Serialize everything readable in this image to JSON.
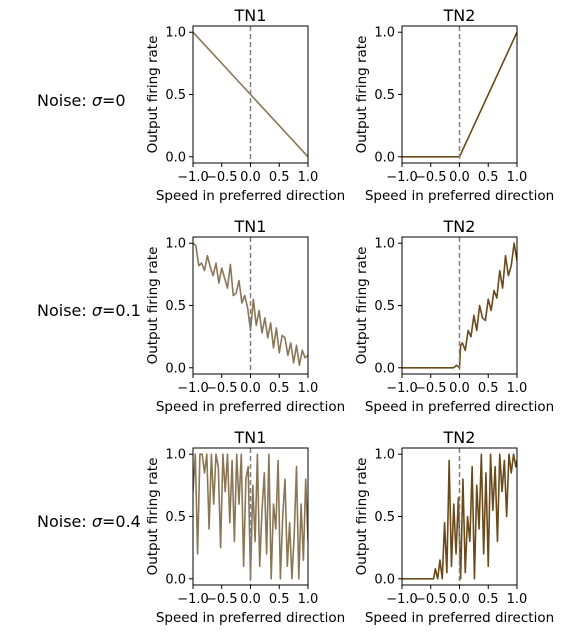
{
  "rows": [
    {
      "label_prefix": "Noise: ",
      "label_symbol": "σ",
      "label_suffix": "=0"
    },
    {
      "label_prefix": "Noise: ",
      "label_symbol": "σ",
      "label_suffix": "=0.1"
    },
    {
      "label_prefix": "Noise: ",
      "label_symbol": "σ",
      "label_suffix": "=0.4"
    }
  ],
  "colors": {
    "tn1": "#8a7655",
    "tn2": "#6b4a1a",
    "zero_line": "#808080",
    "axis": "#000000"
  },
  "chart_data": [
    {
      "type": "line",
      "title": "TN1",
      "row": "Noise: σ=0",
      "xlabel": "Speed in preferred direction",
      "ylabel": "Output firing rate",
      "xlim": [
        -1,
        1
      ],
      "ylim": [
        -0.05,
        1.05
      ],
      "xticks": [
        "−1.0",
        "−0.5",
        "0.0",
        "0.5",
        "1.0"
      ],
      "yticks": [
        "0.0",
        "0.5",
        "1.0"
      ],
      "grid": false,
      "zero_line": "dashed vertical at x=0",
      "series": [
        {
          "x": [
            -1,
            1
          ],
          "y": [
            1,
            0
          ]
        }
      ]
    },
    {
      "type": "line",
      "title": "TN2",
      "row": "Noise: σ=0",
      "xlabel": "Speed in preferred direction",
      "ylabel": "Output firing rate",
      "xlim": [
        -1,
        1
      ],
      "ylim": [
        -0.05,
        1.05
      ],
      "xticks": [
        "−1.0",
        "−0.5",
        "0.0",
        "0.5",
        "1.0"
      ],
      "yticks": [
        "0.0",
        "0.5",
        "1.0"
      ],
      "grid": false,
      "zero_line": "dashed vertical at x=0",
      "series": [
        {
          "x": [
            -1,
            0,
            1
          ],
          "y": [
            0,
            0,
            1
          ]
        }
      ]
    },
    {
      "type": "line",
      "title": "TN1",
      "row": "Noise: σ=0.1",
      "xlabel": "Speed in preferred direction",
      "ylabel": "Output firing rate",
      "xlim": [
        -1,
        1
      ],
      "ylim": [
        -0.05,
        1.05
      ],
      "xticks": [
        "−1.0",
        "−0.5",
        "0.0",
        "0.5",
        "1.0"
      ],
      "yticks": [
        "0.0",
        "0.5",
        "1.0"
      ],
      "grid": false,
      "zero_line": "dashed vertical at x=0",
      "series": [
        {
          "x": [
            -1.0,
            -0.95,
            -0.9,
            -0.85,
            -0.8,
            -0.75,
            -0.7,
            -0.65,
            -0.6,
            -0.55,
            -0.5,
            -0.45,
            -0.4,
            -0.35,
            -0.3,
            -0.25,
            -0.2,
            -0.15,
            -0.1,
            -0.05,
            0.0,
            0.05,
            0.1,
            0.15,
            0.2,
            0.25,
            0.3,
            0.35,
            0.4,
            0.45,
            0.5,
            0.55,
            0.6,
            0.65,
            0.7,
            0.75,
            0.8,
            0.85,
            0.9,
            0.95,
            1.0
          ],
          "y": [
            1.0,
            0.98,
            0.82,
            0.84,
            0.78,
            0.9,
            0.81,
            0.74,
            0.84,
            0.68,
            0.8,
            0.72,
            0.64,
            0.83,
            0.58,
            0.6,
            0.7,
            0.52,
            0.58,
            0.48,
            0.3,
            0.55,
            0.34,
            0.46,
            0.28,
            0.4,
            0.24,
            0.36,
            0.16,
            0.32,
            0.12,
            0.26,
            0.24,
            0.1,
            0.2,
            0.04,
            0.18,
            0.02,
            0.14,
            0.08,
            0.1
          ]
        }
      ]
    },
    {
      "type": "line",
      "title": "TN2",
      "row": "Noise: σ=0.1",
      "xlabel": "Speed in preferred direction",
      "ylabel": "Output firing rate",
      "xlim": [
        -1,
        1
      ],
      "ylim": [
        -0.05,
        1.05
      ],
      "xticks": [
        "−1.0",
        "−0.5",
        "0.0",
        "0.5",
        "1.0"
      ],
      "yticks": [
        "0.0",
        "0.5",
        "1.0"
      ],
      "grid": false,
      "zero_line": "dashed vertical at x=0",
      "series": [
        {
          "x": [
            -1.0,
            -0.9,
            -0.8,
            -0.7,
            -0.6,
            -0.5,
            -0.4,
            -0.3,
            -0.2,
            -0.1,
            -0.05,
            0.0,
            0.02,
            0.05,
            0.1,
            0.15,
            0.2,
            0.25,
            0.3,
            0.35,
            0.4,
            0.45,
            0.5,
            0.55,
            0.6,
            0.65,
            0.7,
            0.75,
            0.8,
            0.85,
            0.9,
            0.95,
            1.0
          ],
          "y": [
            0,
            0,
            0,
            0,
            0,
            0,
            0,
            0,
            0,
            0,
            0.02,
            0.0,
            0.18,
            0.2,
            0.14,
            0.3,
            0.25,
            0.42,
            0.3,
            0.5,
            0.4,
            0.38,
            0.55,
            0.46,
            0.62,
            0.56,
            0.78,
            0.64,
            0.9,
            0.74,
            0.82,
            1.0,
            0.86
          ]
        }
      ]
    },
    {
      "type": "line",
      "title": "TN1",
      "row": "Noise: σ=0.4",
      "xlabel": "Speed in preferred direction",
      "ylabel": "Output firing rate",
      "xlim": [
        -1,
        1
      ],
      "ylim": [
        -0.05,
        1.05
      ],
      "xticks": [
        "−1.0",
        "−0.5",
        "0.0",
        "0.5",
        "1.0"
      ],
      "yticks": [
        "0.0",
        "0.5",
        "1.0"
      ],
      "grid": false,
      "zero_line": "dashed vertical at x=0",
      "series": [
        {
          "x": [
            -1.0,
            -0.96,
            -0.92,
            -0.88,
            -0.84,
            -0.8,
            -0.76,
            -0.72,
            -0.68,
            -0.64,
            -0.6,
            -0.56,
            -0.52,
            -0.48,
            -0.44,
            -0.4,
            -0.36,
            -0.32,
            -0.28,
            -0.24,
            -0.2,
            -0.16,
            -0.12,
            -0.08,
            -0.04,
            0.0,
            0.04,
            0.08,
            0.12,
            0.16,
            0.2,
            0.24,
            0.28,
            0.32,
            0.36,
            0.4,
            0.44,
            0.48,
            0.52,
            0.56,
            0.6,
            0.64,
            0.68,
            0.72,
            0.76,
            0.8,
            0.84,
            0.88,
            0.92,
            0.96,
            1.0
          ],
          "y": [
            0.7,
            1.0,
            0.2,
            1.0,
            1.0,
            0.85,
            1.0,
            0.4,
            1.0,
            0.6,
            1.0,
            0.9,
            0.25,
            1.0,
            0.7,
            1.0,
            0.45,
            0.95,
            0.3,
            1.0,
            0.6,
            1.0,
            0.1,
            0.8,
            0.9,
            0.0,
            0.75,
            0.3,
            1.0,
            0.1,
            0.55,
            0.85,
            0.2,
            1.0,
            0.0,
            0.6,
            0.4,
            0.95,
            0.0,
            0.5,
            0.8,
            0.1,
            0.45,
            0.0,
            0.35,
            0.9,
            0.0,
            0.6,
            0.15,
            0.8,
            0.3
          ]
        }
      ]
    },
    {
      "type": "line",
      "title": "TN2",
      "row": "Noise: σ=0.4",
      "xlabel": "Speed in preferred direction",
      "ylabel": "Output firing rate",
      "xlim": [
        -1,
        1
      ],
      "ylim": [
        -0.05,
        1.05
      ],
      "xticks": [
        "−1.0",
        "−0.5",
        "0.0",
        "0.5",
        "1.0"
      ],
      "yticks": [
        "0.0",
        "0.5",
        "1.0"
      ],
      "grid": false,
      "zero_line": "dashed vertical at x=0",
      "series": [
        {
          "x": [
            -1.0,
            -0.9,
            -0.8,
            -0.7,
            -0.6,
            -0.5,
            -0.45,
            -0.42,
            -0.38,
            -0.34,
            -0.3,
            -0.26,
            -0.22,
            -0.18,
            -0.14,
            -0.1,
            -0.06,
            -0.02,
            0.02,
            0.06,
            0.1,
            0.14,
            0.18,
            0.22,
            0.26,
            0.3,
            0.34,
            0.38,
            0.42,
            0.46,
            0.5,
            0.54,
            0.58,
            0.62,
            0.66,
            0.7,
            0.74,
            0.78,
            0.82,
            0.86,
            0.9,
            0.94,
            0.98,
            1.0
          ],
          "y": [
            0,
            0,
            0,
            0,
            0,
            0,
            0.0,
            0.08,
            0.0,
            0.15,
            0.0,
            0.45,
            0.05,
            0.95,
            0.1,
            0.6,
            0.2,
            0.65,
            0.0,
            0.8,
            0.05,
            0.5,
            0.3,
            0.9,
            0.0,
            0.75,
            0.4,
            1.0,
            0.2,
            0.85,
            0.1,
            1.0,
            0.55,
            0.9,
            0.3,
            1.0,
            0.7,
            0.95,
            0.5,
            1.0,
            0.85,
            1.0,
            0.9,
            0.95
          ]
        }
      ]
    }
  ]
}
